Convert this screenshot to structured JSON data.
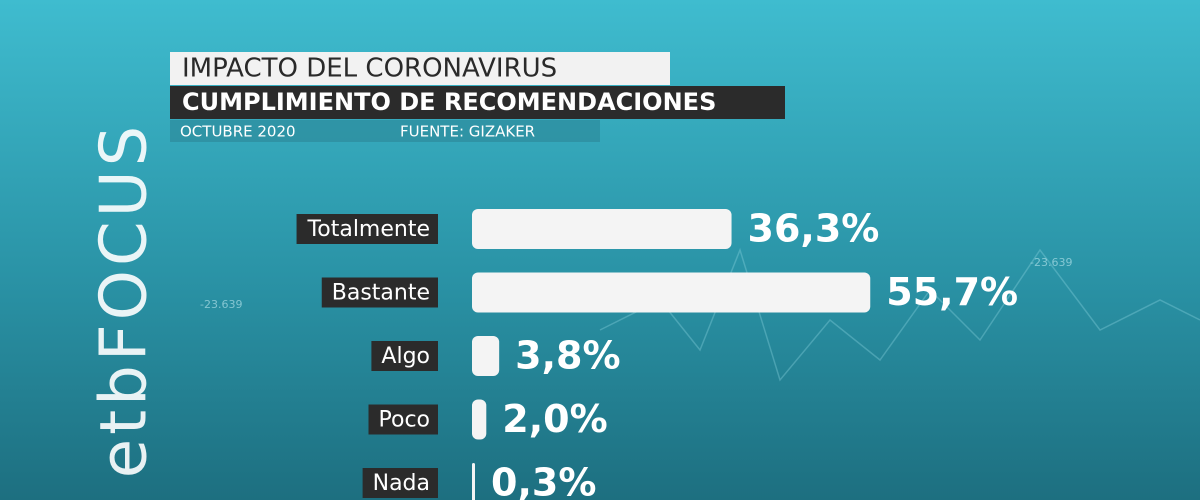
{
  "chart_data": {
    "type": "bar",
    "orientation": "horizontal",
    "title": "IMPACTO DEL CORONAVIRUS",
    "subtitle": "CUMPLIMIENTO DE RECOMENDACIONES",
    "date": "OCTUBRE 2020",
    "source": "FUENTE: GIZAKER",
    "brand": "etbFOCUS",
    "background_labels": [
      "-23.639",
      "-23.639"
    ],
    "categories": [
      "Totalmente",
      "Bastante",
      "Algo",
      "Poco",
      "Nada"
    ],
    "values": [
      36.3,
      55.7,
      3.8,
      2.0,
      0.3
    ],
    "value_labels": [
      "36,3%",
      "55,7%",
      "3,8%",
      "2,0%",
      "0,3%"
    ],
    "color": "#f4f4f4"
  }
}
